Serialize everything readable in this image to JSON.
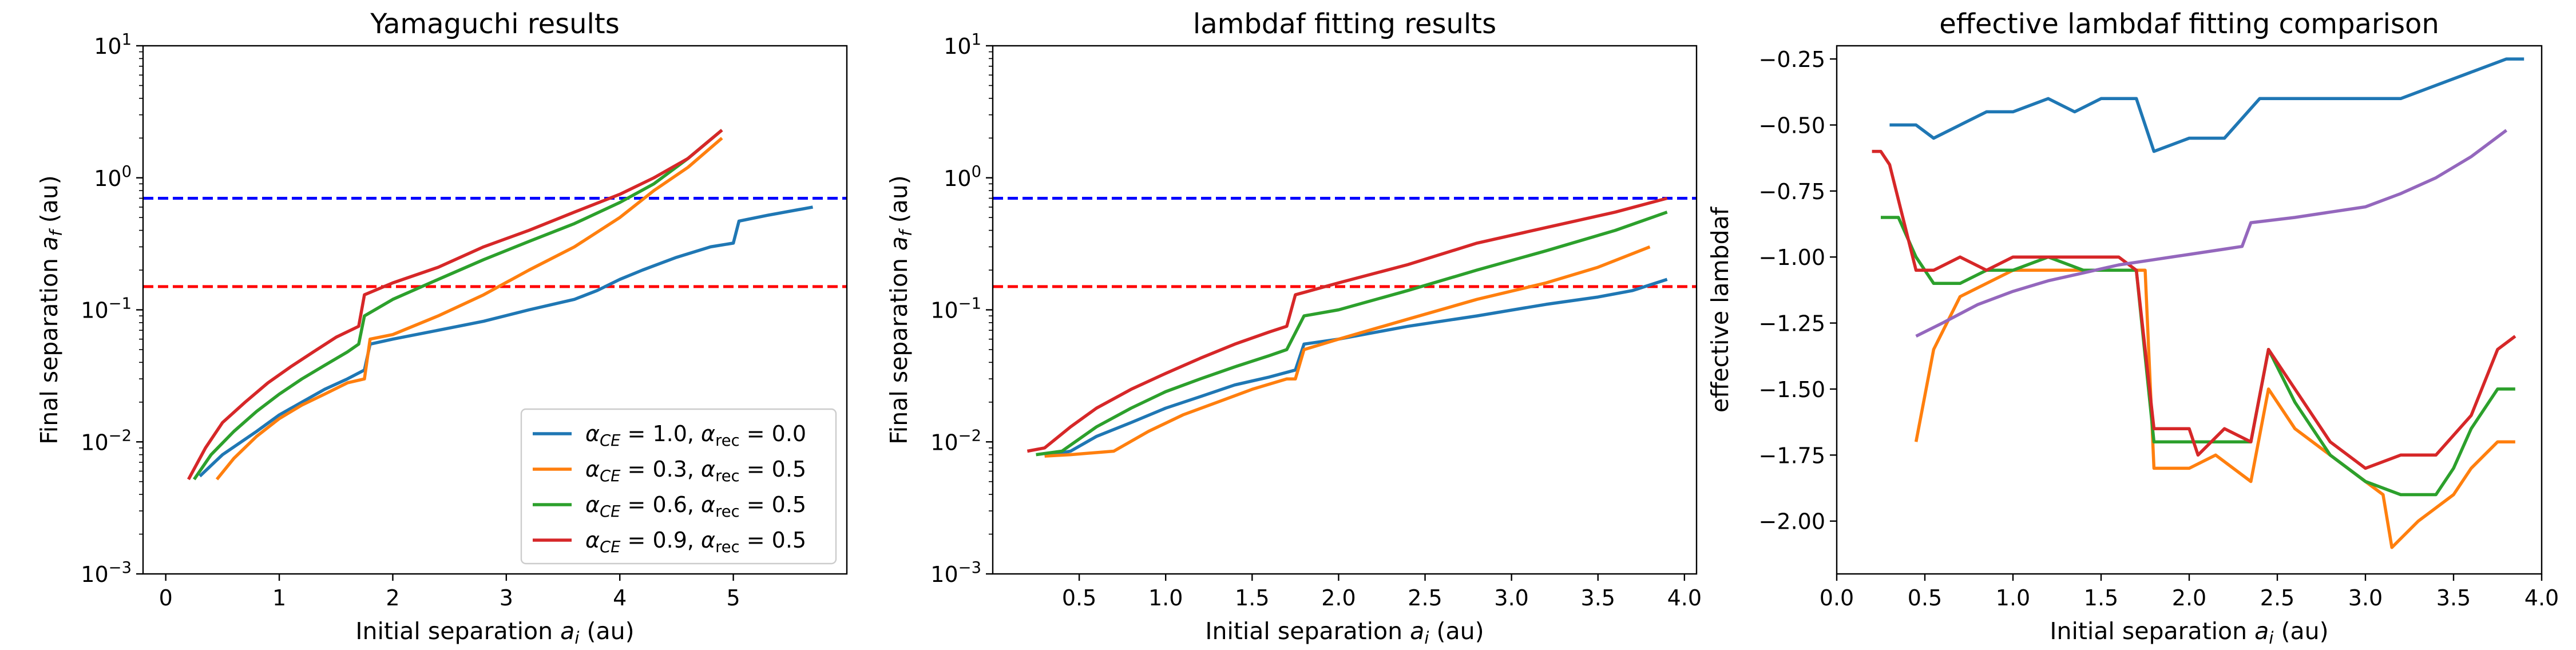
{
  "colors": {
    "blue": "#1f77b4",
    "orange": "#ff7f0e",
    "green": "#2ca02c",
    "red": "#d62728",
    "purple": "#9467bd",
    "ref_blue": "#0000ff",
    "ref_red": "#ff0000"
  },
  "chart_data": [
    {
      "type": "line",
      "title": "Yamaguchi results",
      "xlabel": "Initial separation a_i (au)",
      "ylabel": "Final separation a_f (au)",
      "xscale": "linear",
      "yscale": "log",
      "xlim": [
        -0.2,
        6.0
      ],
      "ylim": [
        0.001,
        10
      ],
      "xticks": [
        "0",
        "1",
        "2",
        "3",
        "4",
        "5"
      ],
      "yticks": [
        "10^-3",
        "10^-2",
        "10^-1",
        "10^0",
        "10^1"
      ],
      "hlines": [
        {
          "y": 0.7,
          "color": "ref_blue",
          "style": "dashed"
        },
        {
          "y": 0.15,
          "color": "ref_red",
          "style": "dashed"
        }
      ],
      "legend": {
        "position": "lower right",
        "entries": [
          "α_CE = 1.0, α_rec = 0.0",
          "α_CE = 0.3, α_rec = 0.5",
          "α_CE = 0.6, α_rec = 0.5",
          "α_CE = 0.9, α_rec = 0.5"
        ]
      },
      "series": [
        {
          "color": "blue",
          "x": [
            0.3,
            0.5,
            0.8,
            1.0,
            1.2,
            1.4,
            1.6,
            1.75,
            1.8,
            2.0,
            2.4,
            2.8,
            3.2,
            3.6,
            3.8,
            4.0,
            4.2,
            4.5,
            4.8,
            5.0,
            5.05,
            5.3,
            5.7
          ],
          "y": [
            0.0055,
            0.008,
            0.012,
            0.016,
            0.02,
            0.025,
            0.03,
            0.035,
            0.055,
            0.06,
            0.07,
            0.082,
            0.1,
            0.12,
            0.14,
            0.17,
            0.2,
            0.25,
            0.3,
            0.32,
            0.47,
            0.52,
            0.6
          ]
        },
        {
          "color": "orange",
          "x": [
            0.45,
            0.6,
            0.8,
            1.0,
            1.2,
            1.4,
            1.6,
            1.75,
            1.8,
            2.0,
            2.4,
            2.8,
            3.2,
            3.6,
            4.0,
            4.3,
            4.6,
            4.9
          ],
          "y": [
            0.0052,
            0.0075,
            0.011,
            0.015,
            0.019,
            0.023,
            0.028,
            0.03,
            0.06,
            0.065,
            0.09,
            0.13,
            0.2,
            0.3,
            0.5,
            0.8,
            1.2,
            2.0
          ]
        },
        {
          "color": "green",
          "x": [
            0.25,
            0.4,
            0.6,
            0.8,
            1.0,
            1.2,
            1.4,
            1.6,
            1.7,
            1.75,
            2.0,
            2.4,
            2.8,
            3.2,
            3.6,
            4.0,
            4.3,
            4.6,
            4.9
          ],
          "y": [
            0.0052,
            0.008,
            0.012,
            0.017,
            0.023,
            0.03,
            0.038,
            0.048,
            0.055,
            0.09,
            0.12,
            0.17,
            0.24,
            0.33,
            0.45,
            0.65,
            0.9,
            1.4,
            2.3
          ]
        },
        {
          "color": "red",
          "x": [
            0.2,
            0.35,
            0.5,
            0.7,
            0.9,
            1.1,
            1.3,
            1.5,
            1.7,
            1.75,
            2.0,
            2.4,
            2.8,
            3.2,
            3.6,
            4.0,
            4.3,
            4.6,
            4.9
          ],
          "y": [
            0.0052,
            0.009,
            0.014,
            0.02,
            0.028,
            0.037,
            0.048,
            0.062,
            0.075,
            0.13,
            0.16,
            0.21,
            0.3,
            0.4,
            0.55,
            0.75,
            1.0,
            1.4,
            2.3
          ]
        }
      ]
    },
    {
      "type": "line",
      "title": "lambdaf fitting results",
      "xlabel": "Initial separation a_i (au)",
      "ylabel": "Final separation a_f (au)",
      "xscale": "linear",
      "yscale": "log",
      "xlim": [
        0.0,
        4.07
      ],
      "ylim": [
        0.001,
        10
      ],
      "xticks": [
        "0.5",
        "1.0",
        "1.5",
        "2.0",
        "2.5",
        "3.0",
        "3.5",
        "4.0"
      ],
      "yticks": [
        "10^-3",
        "10^-2",
        "10^-1",
        "10^0",
        "10^1"
      ],
      "hlines": [
        {
          "y": 0.7,
          "color": "ref_blue",
          "style": "dashed"
        },
        {
          "y": 0.15,
          "color": "ref_red",
          "style": "dashed"
        }
      ],
      "series": [
        {
          "color": "blue",
          "x": [
            0.3,
            0.45,
            0.6,
            0.8,
            1.0,
            1.2,
            1.4,
            1.6,
            1.75,
            1.8,
            2.0,
            2.4,
            2.8,
            3.2,
            3.5,
            3.7,
            3.9
          ],
          "y": [
            0.0078,
            0.0085,
            0.011,
            0.014,
            0.018,
            0.022,
            0.027,
            0.031,
            0.035,
            0.055,
            0.06,
            0.075,
            0.09,
            0.11,
            0.125,
            0.14,
            0.17
          ]
        },
        {
          "color": "orange",
          "x": [
            0.3,
            0.45,
            0.7,
            0.9,
            1.1,
            1.3,
            1.5,
            1.7,
            1.75,
            1.8,
            2.0,
            2.4,
            2.8,
            3.2,
            3.5,
            3.8
          ],
          "y": [
            0.0078,
            0.008,
            0.0085,
            0.012,
            0.016,
            0.02,
            0.025,
            0.03,
            0.03,
            0.05,
            0.06,
            0.085,
            0.12,
            0.16,
            0.21,
            0.3
          ]
        },
        {
          "color": "green",
          "x": [
            0.25,
            0.4,
            0.6,
            0.8,
            1.0,
            1.2,
            1.4,
            1.6,
            1.7,
            1.8,
            2.0,
            2.4,
            2.8,
            3.2,
            3.6,
            3.9
          ],
          "y": [
            0.008,
            0.0085,
            0.013,
            0.018,
            0.024,
            0.03,
            0.037,
            0.045,
            0.05,
            0.09,
            0.1,
            0.14,
            0.2,
            0.28,
            0.4,
            0.55
          ]
        },
        {
          "color": "red",
          "x": [
            0.2,
            0.3,
            0.45,
            0.6,
            0.8,
            1.0,
            1.2,
            1.4,
            1.6,
            1.7,
            1.75,
            2.0,
            2.4,
            2.8,
            3.2,
            3.6,
            3.9
          ],
          "y": [
            0.0085,
            0.009,
            0.013,
            0.018,
            0.025,
            0.033,
            0.043,
            0.055,
            0.068,
            0.075,
            0.13,
            0.16,
            0.22,
            0.32,
            0.42,
            0.55,
            0.7
          ]
        }
      ]
    },
    {
      "type": "line",
      "title": "effective lambdaf fitting comparison",
      "xlabel": "Initial separation a_i (au)",
      "ylabel": "effective lambdaf",
      "xscale": "linear",
      "yscale": "linear",
      "xlim": [
        0.0,
        4.0
      ],
      "ylim": [
        -2.2,
        -0.2
      ],
      "xticks": [
        "0.0",
        "0.5",
        "1.0",
        "1.5",
        "2.0",
        "2.5",
        "3.0",
        "3.5",
        "4.0"
      ],
      "yticks": [
        "−2.00",
        "−1.75",
        "−1.50",
        "−1.25",
        "−1.00",
        "−0.75",
        "−0.50",
        "−0.25"
      ],
      "series": [
        {
          "color": "blue",
          "x": [
            0.3,
            0.45,
            0.55,
            0.7,
            0.85,
            1.0,
            1.2,
            1.35,
            1.5,
            1.7,
            1.8,
            2.0,
            2.2,
            2.4,
            2.6,
            2.8,
            3.0,
            3.2,
            3.4,
            3.6,
            3.8,
            3.9
          ],
          "y": [
            -0.5,
            -0.5,
            -0.55,
            -0.5,
            -0.45,
            -0.45,
            -0.4,
            -0.45,
            -0.4,
            -0.4,
            -0.6,
            -0.55,
            -0.55,
            -0.4,
            -0.4,
            -0.4,
            -0.4,
            -0.4,
            -0.35,
            -0.3,
            -0.25,
            -0.25
          ]
        },
        {
          "color": "orange",
          "x": [
            0.45,
            0.55,
            0.7,
            0.85,
            1.0,
            1.2,
            1.4,
            1.6,
            1.7,
            1.75,
            1.8,
            2.0,
            2.15,
            2.35,
            2.45,
            2.6,
            2.8,
            3.0,
            3.1,
            3.15,
            3.3,
            3.5,
            3.6,
            3.75,
            3.85
          ],
          "y": [
            -1.7,
            -1.35,
            -1.15,
            -1.1,
            -1.05,
            -1.05,
            -1.05,
            -1.05,
            -1.05,
            -1.05,
            -1.8,
            -1.8,
            -1.75,
            -1.85,
            -1.5,
            -1.65,
            -1.75,
            -1.85,
            -1.9,
            -2.1,
            -2.0,
            -1.9,
            -1.8,
            -1.7,
            -1.7
          ]
        },
        {
          "color": "green",
          "x": [
            0.25,
            0.35,
            0.45,
            0.55,
            0.7,
            0.85,
            1.0,
            1.2,
            1.4,
            1.6,
            1.7,
            1.8,
            2.0,
            2.2,
            2.35,
            2.45,
            2.6,
            2.8,
            3.0,
            3.2,
            3.4,
            3.5,
            3.6,
            3.75,
            3.85
          ],
          "y": [
            -0.85,
            -0.85,
            -1.0,
            -1.1,
            -1.1,
            -1.05,
            -1.05,
            -1.0,
            -1.05,
            -1.05,
            -1.05,
            -1.7,
            -1.7,
            -1.7,
            -1.7,
            -1.35,
            -1.55,
            -1.75,
            -1.85,
            -1.9,
            -1.9,
            -1.8,
            -1.65,
            -1.5,
            -1.5
          ]
        },
        {
          "color": "red",
          "x": [
            0.2,
            0.25,
            0.3,
            0.45,
            0.55,
            0.7,
            0.85,
            1.0,
            1.2,
            1.4,
            1.6,
            1.7,
            1.8,
            2.0,
            2.05,
            2.2,
            2.35,
            2.45,
            2.6,
            2.8,
            3.0,
            3.2,
            3.4,
            3.6,
            3.75,
            3.85
          ],
          "y": [
            -0.6,
            -0.6,
            -0.65,
            -1.05,
            -1.05,
            -1.0,
            -1.05,
            -1.0,
            -1.0,
            -1.0,
            -1.0,
            -1.05,
            -1.65,
            -1.65,
            -1.75,
            -1.65,
            -1.7,
            -1.35,
            -1.5,
            -1.7,
            -1.8,
            -1.75,
            -1.75,
            -1.6,
            -1.35,
            -1.3
          ]
        },
        {
          "color": "purple",
          "x": [
            0.45,
            0.6,
            0.8,
            1.0,
            1.2,
            1.4,
            1.6,
            1.8,
            2.0,
            2.2,
            2.3,
            2.35,
            2.6,
            2.8,
            3.0,
            3.2,
            3.4,
            3.6,
            3.8
          ],
          "y": [
            -1.3,
            -1.25,
            -1.18,
            -1.13,
            -1.09,
            -1.06,
            -1.03,
            -1.01,
            -0.99,
            -0.97,
            -0.96,
            -0.87,
            -0.85,
            -0.83,
            -0.81,
            -0.76,
            -0.7,
            -0.62,
            -0.52
          ]
        }
      ]
    }
  ]
}
